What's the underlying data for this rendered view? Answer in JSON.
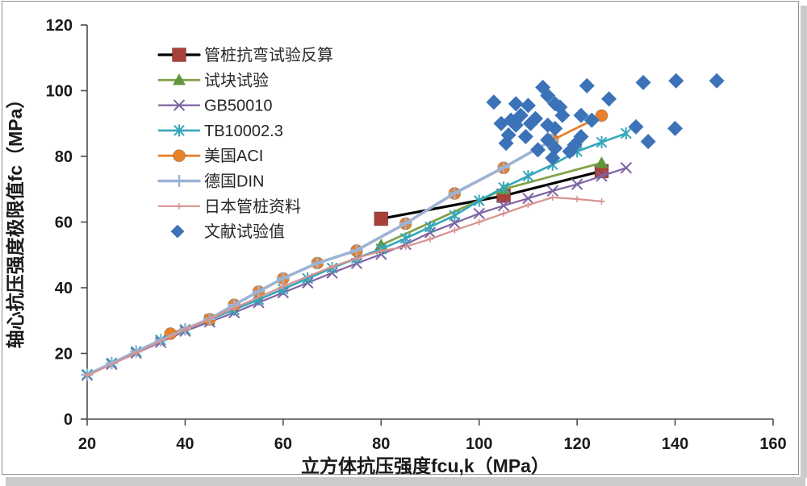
{
  "window": {
    "background": "#ffffff",
    "frame_border_color": "#8f8f8f",
    "frame_shadow_color": "#cbcbcb"
  },
  "chart_data": {
    "type": "line",
    "title": "",
    "xlabel": "立方体抗压强度fcu,k（MPa）",
    "ylabel": "轴心抗压强度极限值fc（MPa）",
    "xlim": [
      20,
      160
    ],
    "ylim": [
      0,
      120
    ],
    "xticks": [
      20,
      40,
      60,
      80,
      100,
      120,
      140,
      160
    ],
    "yticks": [
      0,
      20,
      40,
      60,
      80,
      100,
      120
    ],
    "grid": false,
    "legend_position": "top-left",
    "axis_color": "#4d4d4d",
    "text_color": "#1a1a1a",
    "series": [
      {
        "name": "管桩抗弯试验反算",
        "kind": "line",
        "color": "#000000",
        "marker": "square",
        "marker_color": "#A8413A",
        "line_width": 3.2,
        "marker_size": 8.5,
        "points": [
          [
            80,
            61
          ],
          [
            105,
            68
          ],
          [
            125,
            75.5
          ]
        ]
      },
      {
        "name": "试块试验",
        "kind": "line",
        "color": "#84A24A",
        "marker": "triangle",
        "marker_color": "#61973B",
        "line_width": 2.8,
        "marker_size": 8,
        "points": [
          [
            80,
            53
          ],
          [
            105,
            70
          ],
          [
            125,
            78
          ]
        ]
      },
      {
        "name": "GB50010",
        "kind": "line",
        "color": "#7E62A2",
        "marker": "x",
        "marker_color": "#7E62A2",
        "line_width": 2.2,
        "marker_size": 6.5,
        "points": [
          [
            20,
            13.4
          ],
          [
            25,
            16.7
          ],
          [
            30,
            20.1
          ],
          [
            35,
            23.4
          ],
          [
            40,
            26.8
          ],
          [
            45,
            29.6
          ],
          [
            50,
            32.4
          ],
          [
            55,
            35.5
          ],
          [
            60,
            38.5
          ],
          [
            65,
            41.5
          ],
          [
            70,
            44.5
          ],
          [
            75,
            47.4
          ],
          [
            80,
            50.2
          ],
          [
            85,
            53.2
          ],
          [
            90,
            56.8
          ],
          [
            95,
            59.7
          ],
          [
            100,
            62.6
          ],
          [
            105,
            65
          ],
          [
            110,
            67.2
          ],
          [
            115,
            69.5
          ],
          [
            120,
            71.5
          ],
          [
            125,
            74
          ],
          [
            130,
            76.5
          ]
        ]
      },
      {
        "name": "TB10002.3",
        "kind": "line",
        "color": "#35A7BA",
        "marker": "asterisk",
        "marker_color": "#35A7BA",
        "line_width": 2.6,
        "marker_size": 7.5,
        "points": [
          [
            20,
            13.6
          ],
          [
            25,
            17.1
          ],
          [
            30,
            20.6
          ],
          [
            35,
            24.1
          ],
          [
            40,
            27.3
          ],
          [
            45,
            30.3
          ],
          [
            50,
            33.3
          ],
          [
            55,
            36.4
          ],
          [
            60,
            39.6
          ],
          [
            65,
            42.8
          ],
          [
            70,
            46
          ],
          [
            75,
            49
          ],
          [
            80,
            51.8
          ],
          [
            85,
            55
          ],
          [
            90,
            58.5
          ],
          [
            95,
            62
          ],
          [
            100,
            66.5
          ],
          [
            105,
            70.5
          ],
          [
            110,
            74
          ],
          [
            115,
            77.5
          ],
          [
            120,
            81.5
          ],
          [
            125,
            84.3
          ],
          [
            130,
            87
          ]
        ]
      },
      {
        "name": "美国ACI",
        "kind": "line",
        "color": "#E8802C",
        "marker": "circle",
        "marker_color": "#E8802C",
        "line_width": 2.8,
        "marker_size": 7.5,
        "points": [
          [
            37,
            26
          ],
          [
            45,
            30.4
          ],
          [
            50,
            34.8
          ],
          [
            55,
            38.8
          ],
          [
            60,
            42.8
          ],
          [
            67,
            47.5
          ],
          [
            75,
            51.3
          ],
          [
            85,
            59.5
          ],
          [
            95,
            68.7
          ],
          [
            105,
            76.5
          ],
          [
            115,
            85
          ],
          [
            125,
            92.4
          ]
        ]
      },
      {
        "name": "德国DIN",
        "kind": "line",
        "color": "#9BB3D6",
        "marker": "plus",
        "marker_color": "#9BB3D6",
        "line_width": 3.5,
        "marker_size": 7.5,
        "points": [
          [
            20,
            13.5
          ],
          [
            25,
            17
          ],
          [
            30,
            20.6
          ],
          [
            35,
            24
          ],
          [
            40,
            27.4
          ],
          [
            45,
            30.5
          ],
          [
            50,
            34.8
          ],
          [
            55,
            38.9
          ],
          [
            60,
            42.9
          ],
          [
            67,
            47.5
          ],
          [
            75,
            51.4
          ],
          [
            85,
            59.6
          ],
          [
            95,
            68.8
          ],
          [
            105,
            76.6
          ],
          [
            115,
            85
          ]
        ]
      },
      {
        "name": "日本管桩资料",
        "kind": "line",
        "color": "#D9928E",
        "marker": "plus-small",
        "marker_color": "#D9928E",
        "line_width": 2.2,
        "marker_size": 4,
        "points": [
          [
            20,
            13.2
          ],
          [
            30,
            20.2
          ],
          [
            40,
            27.2
          ],
          [
            50,
            33.8
          ],
          [
            60,
            40.4
          ],
          [
            70,
            46.4
          ],
          [
            75,
            49
          ],
          [
            80,
            51.2
          ],
          [
            85,
            52.5
          ],
          [
            90,
            54.8
          ],
          [
            95,
            57.5
          ],
          [
            100,
            60
          ],
          [
            105,
            62.6
          ],
          [
            110,
            65.2
          ],
          [
            115,
            67.5
          ],
          [
            120,
            67
          ],
          [
            125,
            66.3
          ]
        ]
      },
      {
        "name": "文献试验值",
        "kind": "scatter",
        "color": "#3B72B8",
        "marker": "diamond",
        "marker_color": "#3B72B8",
        "line_width": 0,
        "marker_size": 9.5,
        "points": [
          [
            103,
            96.5
          ],
          [
            104.5,
            90
          ],
          [
            105.5,
            84
          ],
          [
            106,
            86.5
          ],
          [
            106.5,
            91
          ],
          [
            107.5,
            96
          ],
          [
            107.5,
            89.5
          ],
          [
            108.5,
            92.5
          ],
          [
            109.5,
            86
          ],
          [
            110,
            95.5
          ],
          [
            110.5,
            90
          ],
          [
            111.5,
            91.5
          ],
          [
            112,
            82
          ],
          [
            113,
            101
          ],
          [
            114,
            98.5
          ],
          [
            114,
            89.5
          ],
          [
            114,
            85
          ],
          [
            115,
            79.5
          ],
          [
            115.5,
            82.5
          ],
          [
            115.5,
            96
          ],
          [
            115.5,
            88.5
          ],
          [
            116.5,
            95
          ],
          [
            117,
            92.5
          ],
          [
            118.5,
            81.5
          ],
          [
            119.5,
            83.5
          ],
          [
            120.8,
            92.5
          ],
          [
            120.8,
            86
          ],
          [
            122,
            101.5
          ],
          [
            123,
            91
          ],
          [
            126.5,
            97.5
          ],
          [
            132,
            89
          ],
          [
            133.5,
            102.5
          ],
          [
            134.5,
            84.5
          ],
          [
            140,
            88.5
          ],
          [
            140.2,
            103
          ],
          [
            148.5,
            103
          ]
        ]
      }
    ]
  }
}
